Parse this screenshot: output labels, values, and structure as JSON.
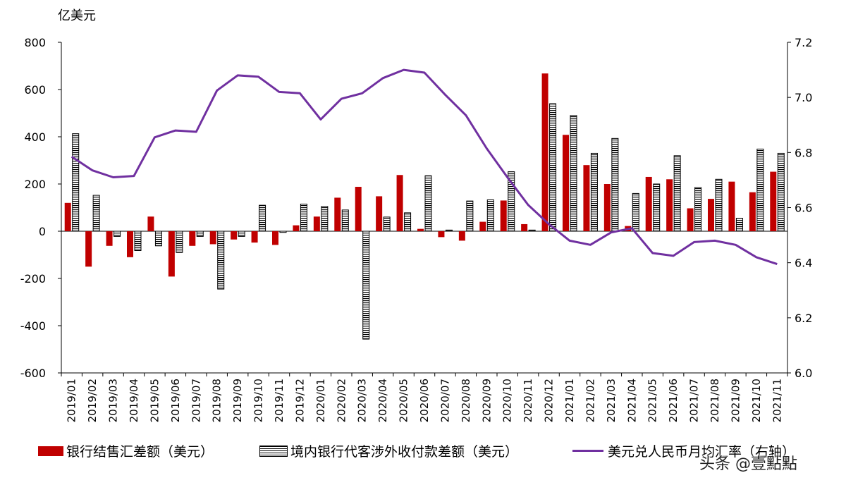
{
  "unit_label": "亿美元",
  "legend": {
    "series1": "银行结售汇差额（美元）",
    "series2": "境内银行代客涉外收付款差额（美元）",
    "series3": "美元兑人民币月均汇率（右轴）"
  },
  "watermark": "头条 @壹點點",
  "colors": {
    "bar1": "#c00000",
    "bar2_hatch": "#000000",
    "line": "#7030a0",
    "axis": "#000000"
  },
  "chart_data": {
    "type": "bar",
    "categories": [
      "2019/01",
      "2019/02",
      "2019/03",
      "2019/04",
      "2019/05",
      "2019/06",
      "2019/07",
      "2019/08",
      "2019/09",
      "2019/10",
      "2019/11",
      "2019/12",
      "2020/01",
      "2020/02",
      "2020/03",
      "2020/04",
      "2020/05",
      "2020/06",
      "2020/07",
      "2020/08",
      "2020/09",
      "2020/10",
      "2020/11",
      "2020/12",
      "2021/01",
      "2021/02",
      "2021/03",
      "2021/04",
      "2021/05",
      "2021/06",
      "2021/07",
      "2021/08",
      "2021/09",
      "2021/10",
      "2021/11"
    ],
    "ylabel": "亿美元",
    "ylim": [
      -600,
      800
    ],
    "yticks": [
      -600,
      -400,
      -200,
      0,
      200,
      400,
      600,
      800
    ],
    "y2lim": [
      6.0,
      7.2
    ],
    "y2ticks": [
      "6.0",
      "6.2",
      "6.4",
      "6.6",
      "6.8",
      "7.0",
      "7.2"
    ],
    "grid": false,
    "legend_position": "bottom",
    "series": [
      {
        "name": "银行结售汇差额（美元）",
        "kind": "bar",
        "axis": "left",
        "values": [
          120,
          -150,
          -62,
          -110,
          62,
          -192,
          -62,
          -55,
          -35,
          -48,
          -58,
          25,
          62,
          142,
          188,
          148,
          238,
          10,
          -25,
          -40,
          40,
          130,
          30,
          668,
          408,
          280,
          200,
          22,
          230,
          220,
          97,
          137,
          210,
          165,
          252
        ]
      },
      {
        "name": "境内银行代客涉外收付款差额（美元）",
        "kind": "bar",
        "axis": "left",
        "values": [
          413,
          152,
          -22,
          -82,
          -62,
          -90,
          -22,
          -245,
          -22,
          110,
          -5,
          115,
          105,
          90,
          -457,
          60,
          78,
          235,
          5,
          128,
          133,
          252,
          5,
          540,
          490,
          330,
          393,
          160,
          200,
          320,
          185,
          220,
          55,
          348,
          330
        ]
      },
      {
        "name": "美元兑人民币月均汇率（右轴）",
        "kind": "line",
        "axis": "right",
        "values": [
          6.785,
          6.735,
          6.71,
          6.715,
          6.855,
          6.88,
          6.875,
          7.025,
          7.08,
          7.075,
          7.02,
          7.015,
          6.92,
          6.995,
          7.015,
          7.07,
          7.1,
          7.09,
          7.01,
          6.935,
          6.815,
          6.71,
          6.61,
          6.54,
          6.48,
          6.465,
          6.51,
          6.525,
          6.435,
          6.425,
          6.475,
          6.48,
          6.465,
          6.42,
          6.395
        ]
      }
    ]
  }
}
